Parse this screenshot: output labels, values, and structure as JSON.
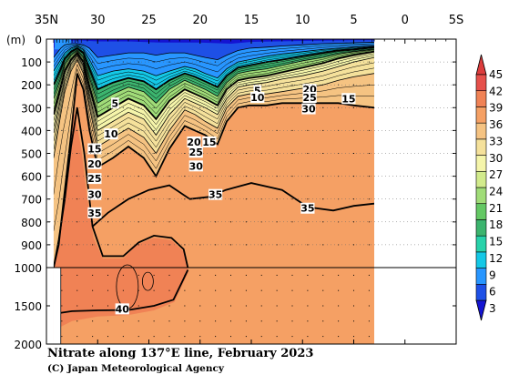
{
  "chart_data": {
    "type": "heatmap",
    "title": "Nitrate along 137°E line, February 2023",
    "credit": "(C) Japan Meteorological Agency",
    "y_unit_label": "(m)",
    "x_axis": {
      "ticks": [
        "35N",
        "30",
        "25",
        "20",
        "15",
        "10",
        "5",
        "0",
        "5S"
      ],
      "tick_values": [
        35,
        30,
        25,
        20,
        15,
        10,
        5,
        0,
        -5
      ],
      "range": [
        35,
        -5
      ]
    },
    "y_axis": {
      "upper_ticks": [
        "0",
        "100",
        "200",
        "300",
        "400",
        "500",
        "600",
        "700",
        "800",
        "900",
        "1000"
      ],
      "upper_tick_values": [
        0,
        100,
        200,
        300,
        400,
        500,
        600,
        700,
        800,
        900,
        1000
      ],
      "lower_ticks": [
        "1500",
        "2000"
      ],
      "lower_tick_values": [
        1500,
        2000
      ],
      "scale_break_depth": 1000,
      "range": [
        0,
        2000
      ]
    },
    "colorbar": {
      "levels": [
        3,
        6,
        9,
        12,
        15,
        18,
        21,
        24,
        27,
        30,
        33,
        36,
        39,
        42,
        45
      ],
      "labels": [
        "45",
        "42",
        "39",
        "36",
        "33",
        "30",
        "27",
        "24",
        "21",
        "18",
        "15",
        "12",
        "9",
        "6",
        "3"
      ],
      "colors": [
        "#1414d2",
        "#1e50e6",
        "#2896ff",
        "#14c8e6",
        "#28d2aa",
        "#3cb46e",
        "#64c864",
        "#a0dc78",
        "#d2eb8c",
        "#f5f5aa",
        "#f5e19b",
        "#f5c382",
        "#f5a064",
        "#f08255",
        "#e6504b",
        "#dc3c3c"
      ],
      "extends": "both"
    },
    "contour_labels": [
      {
        "text": "5",
        "lat": 28.3,
        "depth": 280
      },
      {
        "text": "10",
        "lat": 28.7,
        "depth": 415
      },
      {
        "text": "15",
        "lat": 30.3,
        "depth": 480
      },
      {
        "text": "20",
        "lat": 30.3,
        "depth": 545
      },
      {
        "text": "25",
        "lat": 30.3,
        "depth": 610
      },
      {
        "text": "30",
        "lat": 30.3,
        "depth": 680
      },
      {
        "text": "35",
        "lat": 30.3,
        "depth": 760
      },
      {
        "text": "20",
        "lat": 20.6,
        "depth": 450
      },
      {
        "text": "15",
        "lat": 19.1,
        "depth": 450
      },
      {
        "text": "25",
        "lat": 20.4,
        "depth": 495
      },
      {
        "text": "30",
        "lat": 20.4,
        "depth": 555
      },
      {
        "text": "35",
        "lat": 18.5,
        "depth": 680
      },
      {
        "text": "5",
        "lat": 14.4,
        "depth": 225
      },
      {
        "text": "10",
        "lat": 14.4,
        "depth": 255
      },
      {
        "text": "20",
        "lat": 9.3,
        "depth": 220
      },
      {
        "text": "25",
        "lat": 9.3,
        "depth": 255
      },
      {
        "text": "15",
        "lat": 5.5,
        "depth": 260
      },
      {
        "text": "30",
        "lat": 9.4,
        "depth": 305
      },
      {
        "text": "35",
        "lat": 9.5,
        "depth": 740
      },
      {
        "text": "40",
        "lat": 27.6,
        "depth": 1540
      }
    ],
    "highlighted_contours": [
      5,
      15,
      25,
      35
    ]
  }
}
